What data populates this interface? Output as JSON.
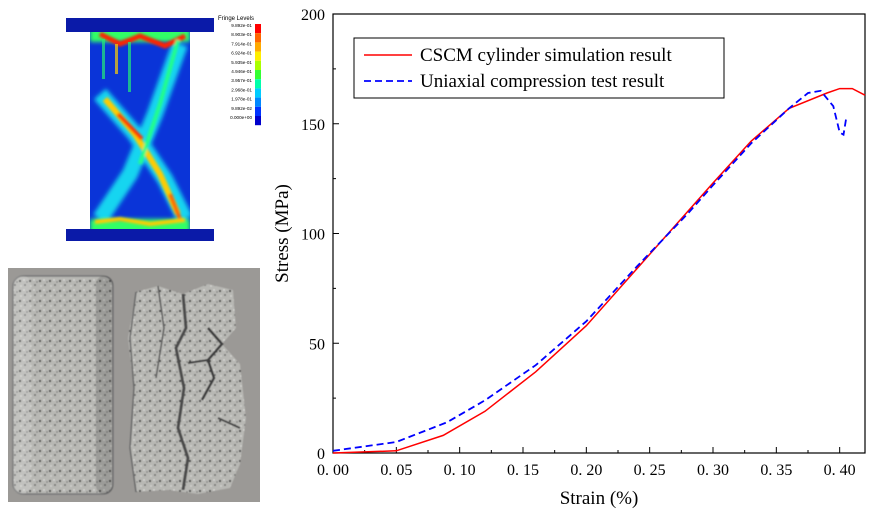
{
  "fringe": {
    "title": "Fringe Levels",
    "levels": [
      "9.892e-01",
      "8.903e-01",
      "7.914e-01",
      "6.924e-01",
      "5.935e-01",
      "4.946e-01",
      "3.957e-01",
      "2.968e-01",
      "1.978e-01",
      "9.892e-02",
      "0.000e+00"
    ],
    "colors": [
      "#ff0000",
      "#ff6600",
      "#ffaa00",
      "#ffee00",
      "#aaff00",
      "#33ff33",
      "#00ffaa",
      "#00ccff",
      "#0088ff",
      "#0033ff",
      "#0000cc"
    ]
  },
  "chart_data": {
    "type": "line",
    "xlabel": "Strain (%)",
    "ylabel": "Stress (MPa)",
    "xlim": [
      0,
      0.42
    ],
    "ylim": [
      0,
      200
    ],
    "xticks": [
      "0. 00",
      "0. 05",
      "0. 10",
      "0. 15",
      "0. 20",
      "0. 25",
      "0. 30",
      "0. 35",
      "0. 40"
    ],
    "yticks": [
      "0",
      "50",
      "100",
      "150",
      "200"
    ],
    "legend_position": "top-left",
    "series": [
      {
        "name": "CSCM cylinder simulation result",
        "color": "#ff0000",
        "style": "solid",
        "x": [
          0.0,
          0.05,
          0.087,
          0.12,
          0.16,
          0.2,
          0.24,
          0.28,
          0.3,
          0.33,
          0.36,
          0.39,
          0.4,
          0.41,
          0.42
        ],
        "y": [
          0,
          1,
          8,
          19,
          37,
          58,
          84,
          110,
          123,
          142,
          157,
          164,
          166,
          166,
          163
        ]
      },
      {
        "name": "Uniaxial compression test result",
        "color": "#0000ff",
        "style": "dashed",
        "x": [
          0.0,
          0.05,
          0.09,
          0.12,
          0.16,
          0.2,
          0.24,
          0.28,
          0.3,
          0.33,
          0.36,
          0.375,
          0.385,
          0.395,
          0.4,
          0.403,
          0.405
        ],
        "y": [
          1,
          5,
          14,
          24,
          40,
          60,
          85,
          109,
          122,
          141,
          157,
          164,
          165,
          158,
          146,
          145,
          152
        ]
      }
    ]
  }
}
